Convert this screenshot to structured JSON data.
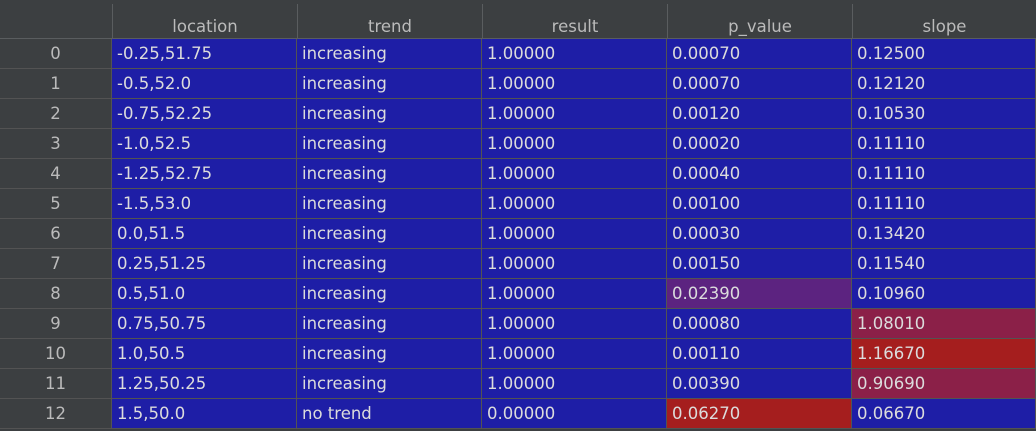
{
  "table": {
    "columns": [
      "location",
      "trend",
      "result",
      "p_value",
      "slope"
    ],
    "rows": [
      {
        "index": "0",
        "cells": [
          "-0.25,51.75",
          "increasing",
          "1.00000",
          "0.00070",
          "0.12500"
        ]
      },
      {
        "index": "1",
        "cells": [
          "-0.5,52.0",
          "increasing",
          "1.00000",
          "0.00070",
          "0.12120"
        ]
      },
      {
        "index": "2",
        "cells": [
          "-0.75,52.25",
          "increasing",
          "1.00000",
          "0.00120",
          "0.10530"
        ]
      },
      {
        "index": "3",
        "cells": [
          "-1.0,52.5",
          "increasing",
          "1.00000",
          "0.00020",
          "0.11110"
        ]
      },
      {
        "index": "4",
        "cells": [
          "-1.25,52.75",
          "increasing",
          "1.00000",
          "0.00040",
          "0.11110"
        ]
      },
      {
        "index": "5",
        "cells": [
          "-1.5,53.0",
          "increasing",
          "1.00000",
          "0.00100",
          "0.11110"
        ]
      },
      {
        "index": "6",
        "cells": [
          "0.0,51.5",
          "increasing",
          "1.00000",
          "0.00030",
          "0.13420"
        ]
      },
      {
        "index": "7",
        "cells": [
          "0.25,51.25",
          "increasing",
          "1.00000",
          "0.00150",
          "0.11540"
        ]
      },
      {
        "index": "8",
        "cells": [
          "0.5,51.0",
          "increasing",
          "1.00000",
          "0.02390",
          "0.10960"
        ]
      },
      {
        "index": "9",
        "cells": [
          "0.75,50.75",
          "increasing",
          "1.00000",
          "0.00080",
          "1.08010"
        ]
      },
      {
        "index": "10",
        "cells": [
          "1.0,50.5",
          "increasing",
          "1.00000",
          "0.00110",
          "1.16670"
        ]
      },
      {
        "index": "11",
        "cells": [
          "1.25,50.25",
          "increasing",
          "1.00000",
          "0.00390",
          "0.90690"
        ]
      },
      {
        "index": "12",
        "cells": [
          "1.5,50.0",
          "no trend",
          "0.00000",
          "0.06270",
          "0.06670"
        ]
      }
    ]
  },
  "colors": {
    "cell_low": "#1e1ea6",
    "cell_high": "#a51e1e",
    "cell_mid": "#5c2380",
    "cell_upper": "#8b2048",
    "header_bg": "#3c3f41",
    "index_bg": "#3c3f41",
    "grid_line": "#535353",
    "text": "#dcdcdc"
  }
}
